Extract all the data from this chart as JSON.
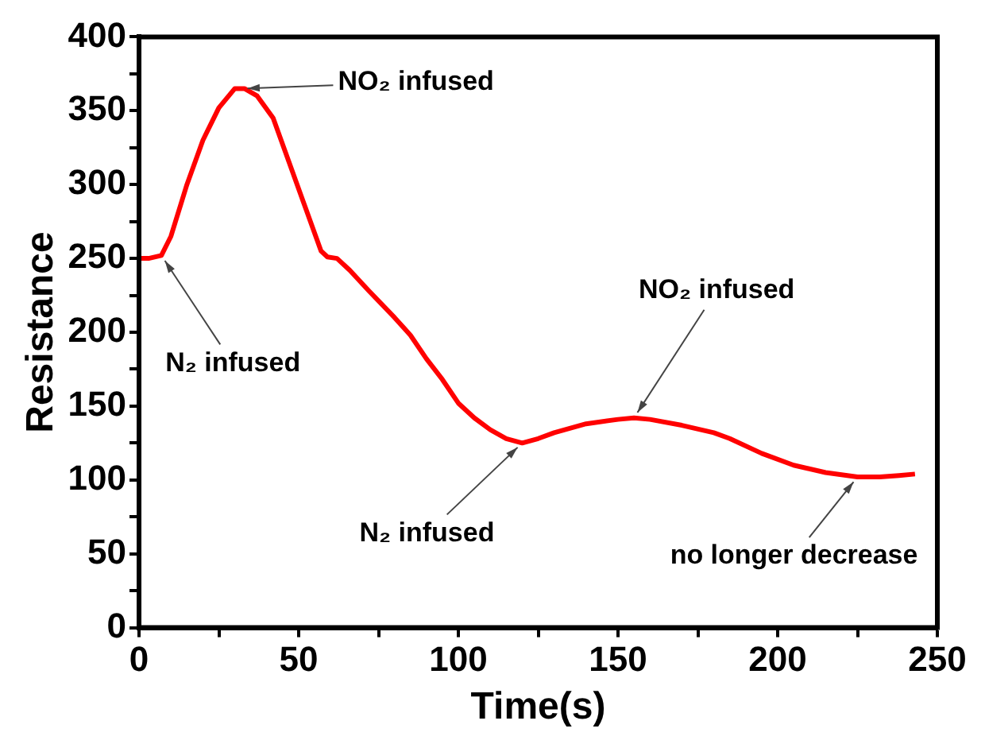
{
  "chart_data": {
    "type": "line",
    "xlabel": "Time(s)",
    "ylabel": "Resistance",
    "x": [
      0,
      3,
      7,
      10,
      15,
      20,
      25,
      30,
      33,
      37,
      42,
      47,
      52,
      57,
      59,
      62,
      66,
      72,
      80,
      85,
      90,
      95,
      100,
      105,
      110,
      115,
      120,
      125,
      130,
      140,
      150,
      155,
      160,
      170,
      180,
      185,
      195,
      205,
      215,
      225,
      232,
      238,
      243
    ],
    "series": [
      {
        "color": "#ff0000",
        "values": [
          250,
          250,
          252,
          265,
          300,
          330,
          352,
          365,
          365,
          360,
          345,
          315,
          285,
          255,
          251,
          250,
          242,
          228,
          210,
          198,
          182,
          168,
          152,
          142,
          134,
          128,
          125,
          128,
          132,
          138,
          141,
          142,
          141,
          137,
          132,
          128,
          118,
          110,
          105,
          102,
          102,
          103,
          104
        ]
      }
    ],
    "xlim": [
      0,
      250
    ],
    "xticks": [
      0,
      {
        "value": 25,
        "label": null
      },
      50,
      {
        "value": 75,
        "label": null
      },
      100,
      {
        "value": 125,
        "label": null
      },
      150,
      {
        "value": 175,
        "label": null
      },
      200,
      {
        "value": 225,
        "label": null
      },
      250
    ],
    "ylim": [
      0,
      400
    ],
    "yticks": [
      0,
      {
        "value": 25,
        "label": null
      },
      50,
      {
        "value": 75,
        "label": null
      },
      100,
      {
        "value": 125,
        "label": null
      },
      150,
      {
        "value": 175,
        "label": null
      },
      200,
      {
        "value": 225,
        "label": null
      },
      250,
      {
        "value": 275,
        "label": null
      },
      300,
      {
        "value": 325,
        "label": null
      },
      350,
      {
        "value": 375,
        "label": null
      },
      400
    ],
    "annotations": [
      {
        "text": "NO₂ infused",
        "x": 32,
        "y": 365
      },
      {
        "text": "N₂ infused",
        "x": 7,
        "y": 252
      },
      {
        "text": "N₂ infused",
        "x": 120,
        "y": 125
      },
      {
        "text": "NO₂ infused",
        "x": 155,
        "y": 142
      },
      {
        "text": "no longer decrease",
        "x": 225,
        "y": 102
      }
    ],
    "grid": false,
    "legend": false,
    "marker": "none",
    "line_style": "solid"
  }
}
